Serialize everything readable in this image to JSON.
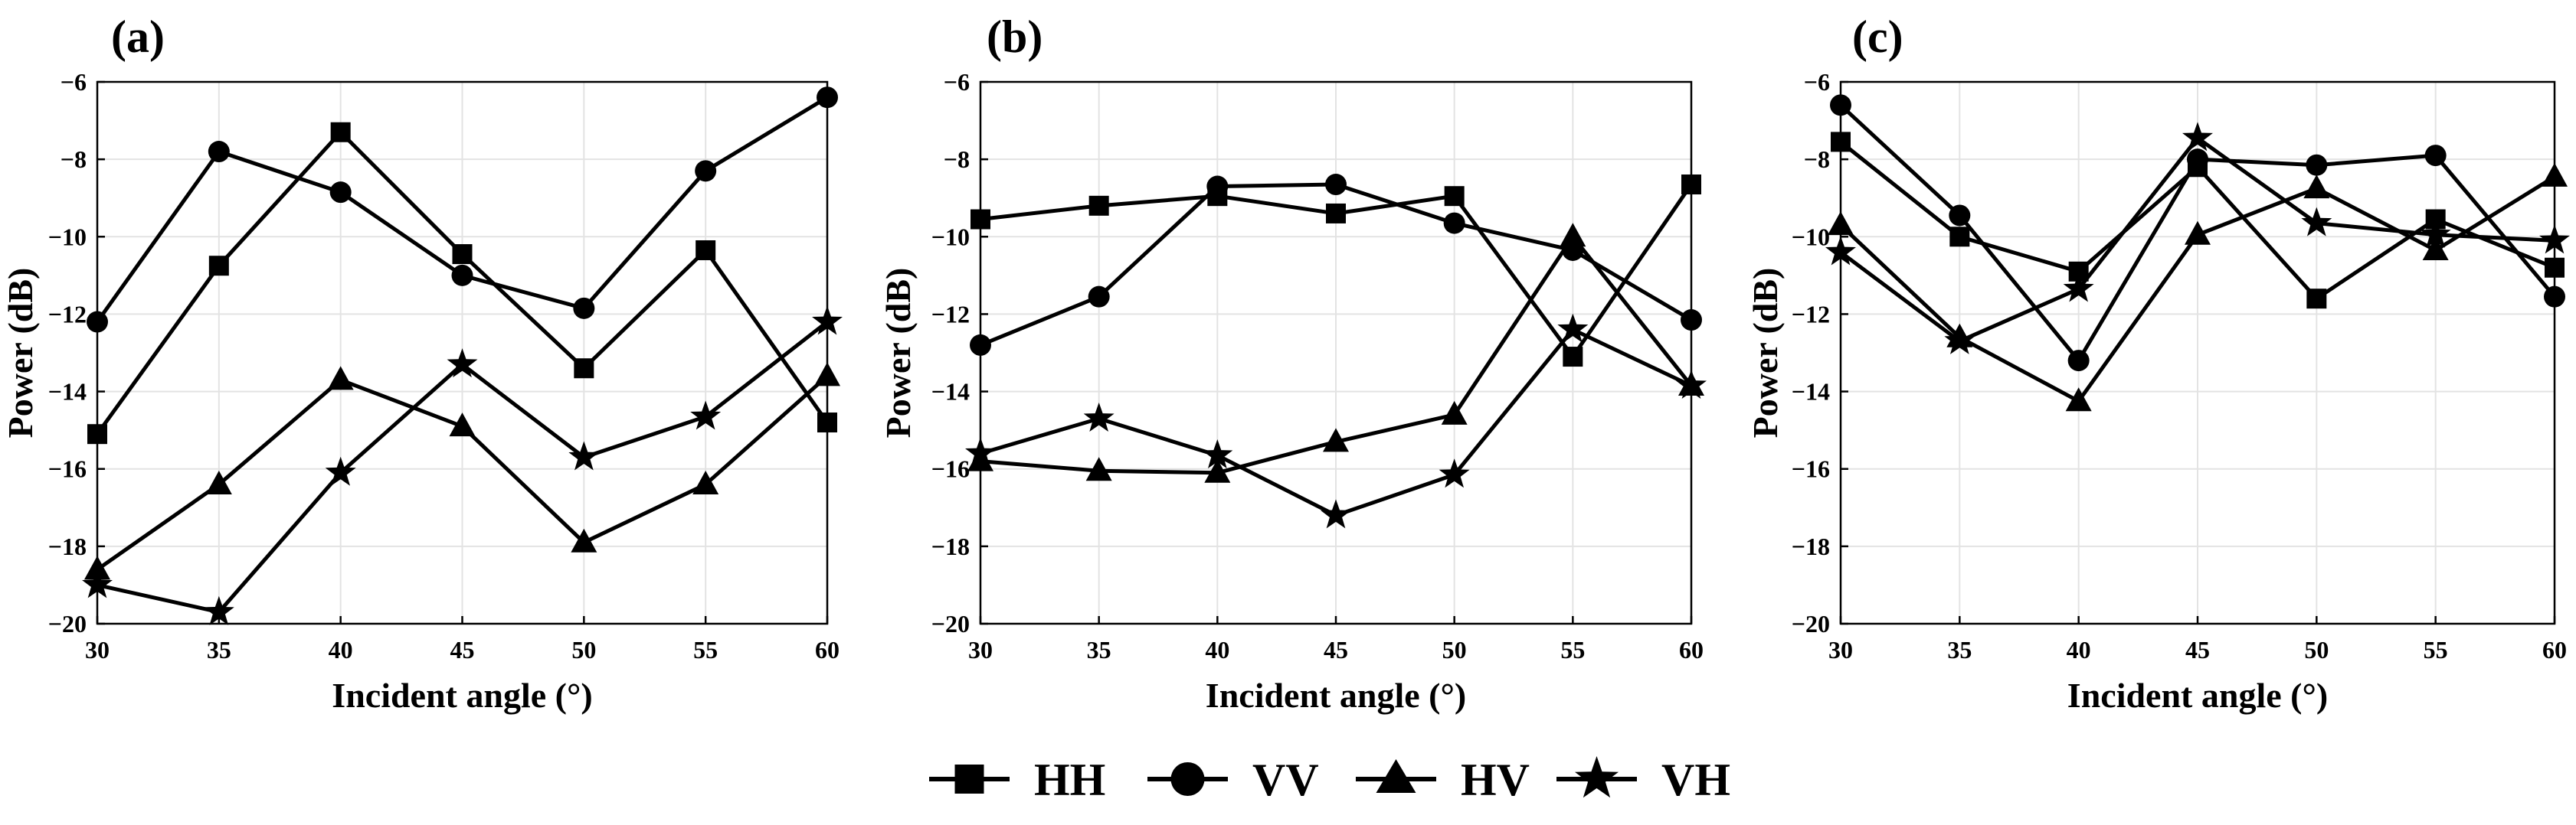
{
  "legend": [
    {
      "name": "HH",
      "marker": "square"
    },
    {
      "name": "VV",
      "marker": "circle"
    },
    {
      "name": "HV",
      "marker": "triangle"
    },
    {
      "name": "VH",
      "marker": "star"
    }
  ],
  "chart_data": [
    {
      "type": "line",
      "panel_label": "(a)",
      "xlabel": "Incident angle (°)",
      "ylabel": "Power (dB)",
      "x": [
        30,
        35,
        40,
        45,
        50,
        55,
        60
      ],
      "xticks": [
        30,
        35,
        40,
        45,
        50,
        55,
        60
      ],
      "yticks": [
        -20,
        -18,
        -16,
        -14,
        -12,
        -10,
        -8,
        -6
      ],
      "ytick_labels": [
        "−20",
        "−18",
        "−16",
        "−14",
        "−12",
        "−10",
        "−8",
        "−6"
      ],
      "xlim": [
        30,
        60
      ],
      "ylim": [
        -20,
        -6
      ],
      "grid": true,
      "series": [
        {
          "name": "HH",
          "marker": "square",
          "values": [
            -15.1,
            -10.75,
            -7.3,
            -10.45,
            -13.4,
            -10.35,
            -14.8
          ]
        },
        {
          "name": "VV",
          "marker": "circle",
          "values": [
            -12.2,
            -7.8,
            -8.85,
            -11.0,
            -11.85,
            -8.3,
            -6.4
          ]
        },
        {
          "name": "HV",
          "marker": "triangle",
          "values": [
            -18.6,
            -16.4,
            -13.7,
            -14.9,
            -17.9,
            -16.4,
            -13.6
          ]
        },
        {
          "name": "VH",
          "marker": "star",
          "values": [
            -19.0,
            -19.7,
            -16.1,
            -13.3,
            -15.7,
            -14.65,
            -12.2
          ]
        }
      ]
    },
    {
      "type": "line",
      "panel_label": "(b)",
      "xlabel": "Incident angle (°)",
      "ylabel": "Power (dB)",
      "x": [
        30,
        35,
        40,
        45,
        50,
        55,
        60
      ],
      "xticks": [
        30,
        35,
        40,
        45,
        50,
        55,
        60
      ],
      "yticks": [
        -20,
        -18,
        -16,
        -14,
        -12,
        -10,
        -8,
        -6
      ],
      "ytick_labels": [
        "−20",
        "−18",
        "−16",
        "−14",
        "−12",
        "−10",
        "−8",
        "−6"
      ],
      "xlim": [
        30,
        60
      ],
      "ylim": [
        -20,
        -6
      ],
      "grid": true,
      "series": [
        {
          "name": "HH",
          "marker": "square",
          "values": [
            -9.55,
            -9.2,
            -8.95,
            -9.4,
            -8.95,
            -13.1,
            -8.65
          ]
        },
        {
          "name": "VV",
          "marker": "circle",
          "values": [
            -12.8,
            -11.55,
            -8.7,
            -8.65,
            -9.65,
            -10.35,
            -12.15
          ]
        },
        {
          "name": "HV",
          "marker": "triangle",
          "values": [
            -15.8,
            -16.05,
            -16.1,
            -15.3,
            -14.6,
            -10.0,
            -13.85
          ]
        },
        {
          "name": "VH",
          "marker": "star",
          "values": [
            -15.6,
            -14.7,
            -15.65,
            -17.2,
            -16.15,
            -12.4,
            -13.85
          ]
        }
      ]
    },
    {
      "type": "line",
      "panel_label": "(c)",
      "xlabel": "Incident angle (°)",
      "ylabel": "Power (dB)",
      "x": [
        30,
        35,
        40,
        45,
        50,
        55,
        60
      ],
      "xticks": [
        30,
        35,
        40,
        45,
        50,
        55,
        60
      ],
      "yticks": [
        -20,
        -18,
        -16,
        -14,
        -12,
        -10,
        -8,
        -6
      ],
      "ytick_labels": [
        "−20",
        "−18",
        "−16",
        "−14",
        "−12",
        "−10",
        "−8",
        "−6"
      ],
      "xlim": [
        30,
        60
      ],
      "ylim": [
        -20,
        -6
      ],
      "grid": true,
      "series": [
        {
          "name": "HH",
          "marker": "square",
          "values": [
            -7.55,
            -10.0,
            -10.9,
            -8.2,
            -11.6,
            -9.55,
            -10.8
          ]
        },
        {
          "name": "VV",
          "marker": "circle",
          "values": [
            -6.6,
            -9.45,
            -13.2,
            -8.0,
            -8.15,
            -7.9,
            -11.55
          ]
        },
        {
          "name": "HV",
          "marker": "triangle",
          "values": [
            -9.7,
            -12.6,
            -14.25,
            -9.95,
            -8.75,
            -10.35,
            -8.45
          ]
        },
        {
          "name": "VH",
          "marker": "star",
          "values": [
            -10.4,
            -12.7,
            -11.35,
            -7.45,
            -9.65,
            -9.95,
            -10.1
          ]
        }
      ]
    }
  ]
}
